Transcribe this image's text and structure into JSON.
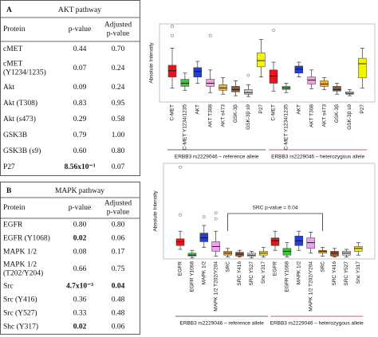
{
  "panels": [
    {
      "letter": "A",
      "title": "AKT pathway",
      "table": {
        "header": [
          "Protein",
          "p-value",
          [
            "Adjusted",
            "p-value"
          ]
        ],
        "rows": [
          {
            "cells": [
              "cMET",
              "0.44",
              "0.70"
            ],
            "bold": []
          },
          {
            "cells": [
              [
                "cMET",
                "(Y1234/1235)"
              ],
              "0.07",
              "0.24"
            ],
            "bold": []
          },
          {
            "cells": [
              "Akt",
              "0.09",
              "0.24"
            ],
            "bold": []
          },
          {
            "cells": [
              "Akt (T308)",
              "0.83",
              "0.95"
            ],
            "bold": []
          },
          {
            "cells": [
              "Akt (s473)",
              "0.29",
              "0.58"
            ],
            "bold": []
          },
          {
            "cells": [
              "GSK3B",
              "0.79",
              "1.00"
            ],
            "bold": []
          },
          {
            "cells": [
              "GSK3B (s9)",
              "0.60",
              "0.80"
            ],
            "bold": []
          },
          {
            "cells": [
              "P27",
              "8.56x10⁻³",
              "0.07"
            ],
            "bold": [
              1
            ]
          }
        ]
      },
      "chart": {
        "type": "box",
        "ylabel": "Absolute Intensity",
        "ylim": [
          0,
          100
        ],
        "colors": [
          "#e8141c",
          "#3cc63c",
          "#1f3fe0",
          "#f0a0e0",
          "#f0b030",
          "#8b5a3c",
          "#c8c8c8",
          "#f5f500"
        ],
        "groups": [
          {
            "label": "ERBB3 rs2229046 – reference allele",
            "categories": [
              "C-MET",
              "C-MET Y1234/1235",
              "AKT",
              "AKT T308",
              "AKT s473",
              "GSK-3β",
              "GSK-3β s9",
              "P27"
            ],
            "boxes": [
              {
                "whislo": 18,
                "q1": 32,
                "med": 40,
                "q3": 47,
                "whishi": 69,
                "outliers": [
                  97,
                  85
                ]
              },
              {
                "whislo": 15,
                "q1": 20,
                "med": 24,
                "q3": 29,
                "whishi": 37,
                "outliers": []
              },
              {
                "whislo": 24,
                "q1": 32,
                "med": 39,
                "q3": 44,
                "whishi": 52,
                "outliers": []
              },
              {
                "whislo": 12,
                "q1": 20,
                "med": 24,
                "q3": 29,
                "whishi": 41,
                "outliers": [
                  85
                ]
              },
              {
                "whislo": 10,
                "q1": 15,
                "med": 18,
                "q3": 22,
                "whishi": 31,
                "outliers": []
              },
              {
                "whislo": 8,
                "q1": 13,
                "med": 16,
                "q3": 20,
                "whishi": 27,
                "outliers": []
              },
              {
                "whislo": 7,
                "q1": 10,
                "med": 12,
                "q3": 16,
                "whishi": 22,
                "outliers": [
                  34
                ]
              },
              {
                "whislo": 32,
                "q1": 45,
                "med": 53,
                "q3": 63,
                "whishi": 80,
                "outliers": []
              }
            ]
          },
          {
            "label": "ERBB3 rs2229046 – heterozygous allele",
            "categories": [
              "C-MET",
              "C-MET Y1234/1235",
              "AKT",
              "AKT T308",
              "AKT s473",
              "GSK-3β",
              "GSK-3β s9",
              "P27"
            ],
            "boxes": [
              {
                "whislo": 14,
                "q1": 24,
                "med": 33,
                "q3": 41,
                "whishi": 51,
                "outliers": [
                  92
                ]
              },
              {
                "whislo": 12,
                "q1": 16,
                "med": 18,
                "q3": 20,
                "whishi": 24,
                "outliers": []
              },
              {
                "whislo": 32,
                "q1": 37,
                "med": 42,
                "q3": 46,
                "whishi": 51,
                "outliers": []
              },
              {
                "whislo": 17,
                "q1": 23,
                "med": 28,
                "q3": 32,
                "whishi": 41,
                "outliers": []
              },
              {
                "whislo": 16,
                "q1": 20,
                "med": 23,
                "q3": 27,
                "whishi": 31,
                "outliers": []
              },
              {
                "whislo": 10,
                "q1": 14,
                "med": 16,
                "q3": 20,
                "whishi": 24,
                "outliers": []
              },
              {
                "whislo": 8,
                "q1": 10,
                "med": 11,
                "q3": 13,
                "whishi": 16,
                "outliers": []
              },
              {
                "whislo": 18,
                "q1": 31,
                "med": 49,
                "q3": 56,
                "whishi": 69,
                "outliers": []
              }
            ]
          }
        ]
      }
    },
    {
      "letter": "B",
      "title": "MAPK pathway",
      "table": {
        "header": [
          "Protein",
          "p-value",
          [
            "Adjusted",
            "p-value"
          ]
        ],
        "rows": [
          {
            "cells": [
              "EGFR",
              "0.80",
              "0.80"
            ],
            "bold": []
          },
          {
            "cells": [
              "EGFR (Y1068)",
              "0.02",
              "0.06"
            ],
            "bold": [
              1
            ]
          },
          {
            "cells": [
              "MAPK 1/2",
              "0.08",
              "0.17"
            ],
            "bold": []
          },
          {
            "cells": [
              [
                "MAPK 1/2",
                "(T202/Y204)"
              ],
              "0.66",
              "0.75"
            ],
            "bold": []
          },
          {
            "cells": [
              "Src",
              "4.7x10⁻³",
              "0.04"
            ],
            "bold": [
              1,
              2
            ]
          },
          {
            "cells": [
              "Src (Y416)",
              "0.36",
              "0.48"
            ],
            "bold": []
          },
          {
            "cells": [
              "Src (Y527)",
              "0.33",
              "0.48"
            ],
            "bold": []
          },
          {
            "cells": [
              "Shc (Y317)",
              "0.02",
              "0.06"
            ],
            "bold": [
              1
            ]
          }
        ]
      },
      "chart": {
        "type": "box",
        "ylabel": "Absolute Intensity",
        "ylim": [
          0,
          100
        ],
        "annotation": "SRC p-value = 0.04",
        "colors": [
          "#e8141c",
          "#3cc63c",
          "#1f3fe0",
          "#f0a0f0",
          "#e8a040",
          "#a0522d",
          "#d0d0d0",
          "#f0e040"
        ],
        "groups": [
          {
            "label": "ERBB3 rs2229046 – reference allele",
            "categories": [
              "EGFR",
              "EGFR Y1068",
              "MAPK 1/2",
              "MAPK 1/2 T202/Y204",
              "SRC",
              "SRC Y416",
              "SRC Y527",
              "Shc Y317"
            ],
            "boxes": [
              {
                "whislo": 10,
                "q1": 14,
                "med": 18,
                "q3": 21,
                "whishi": 29,
                "outliers": [
                  96,
                  46
                ]
              },
              {
                "whislo": 1,
                "q1": 3,
                "med": 4,
                "q3": 6,
                "whishi": 9,
                "outliers": []
              },
              {
                "whislo": 12,
                "q1": 18,
                "med": 22,
                "q3": 27,
                "whishi": 35,
                "outliers": [
                  44
                ]
              },
              {
                "whislo": 3,
                "q1": 8,
                "med": 13,
                "q3": 18,
                "whishi": 29,
                "outliers": [
                  48,
                  42
                ]
              },
              {
                "whislo": 2,
                "q1": 4,
                "med": 6,
                "q3": 8,
                "whishi": 11,
                "outliers": []
              },
              {
                "whislo": 2,
                "q1": 3,
                "med": 5,
                "q3": 7,
                "whishi": 9,
                "outliers": []
              },
              {
                "whislo": 1,
                "q1": 3,
                "med": 4,
                "q3": 6,
                "whishi": 8,
                "outliers": []
              },
              {
                "whislo": 2,
                "q1": 4,
                "med": 6,
                "q3": 8,
                "whishi": 12,
                "outliers": []
              }
            ]
          },
          {
            "label": "ERBB3 rs2229046 – heterozygous allele",
            "categories": [
              "EGFR",
              "EGFR Y1068",
              "MAPK 1/2",
              "MAPK 1/2 T202/Y204",
              "SRC",
              "SRC Y416",
              "SRC Y527",
              "Shc Y317"
            ],
            "boxes": [
              {
                "whislo": 9,
                "q1": 14,
                "med": 19,
                "q3": 22,
                "whishi": 29,
                "outliers": []
              },
              {
                "whislo": 2,
                "q1": 4,
                "med": 8,
                "q3": 11,
                "whishi": 17,
                "outliers": []
              },
              {
                "whislo": 9,
                "q1": 14,
                "med": 19,
                "q3": 24,
                "whishi": 29,
                "outliers": []
              },
              {
                "whislo": 6,
                "q1": 11,
                "med": 17,
                "q3": 22,
                "whishi": 28,
                "outliers": []
              },
              {
                "whislo": 3,
                "q1": 6,
                "med": 8,
                "q3": 9,
                "whishi": 12,
                "outliers": []
              },
              {
                "whislo": 2,
                "q1": 3,
                "med": 6,
                "q3": 8,
                "whishi": 11,
                "outliers": []
              },
              {
                "whislo": 2,
                "q1": 4,
                "med": 6,
                "q3": 8,
                "whishi": 10,
                "outliers": []
              },
              {
                "whislo": 4,
                "q1": 8,
                "med": 11,
                "q3": 13,
                "whishi": 17,
                "outliers": []
              }
            ]
          }
        ]
      }
    }
  ]
}
